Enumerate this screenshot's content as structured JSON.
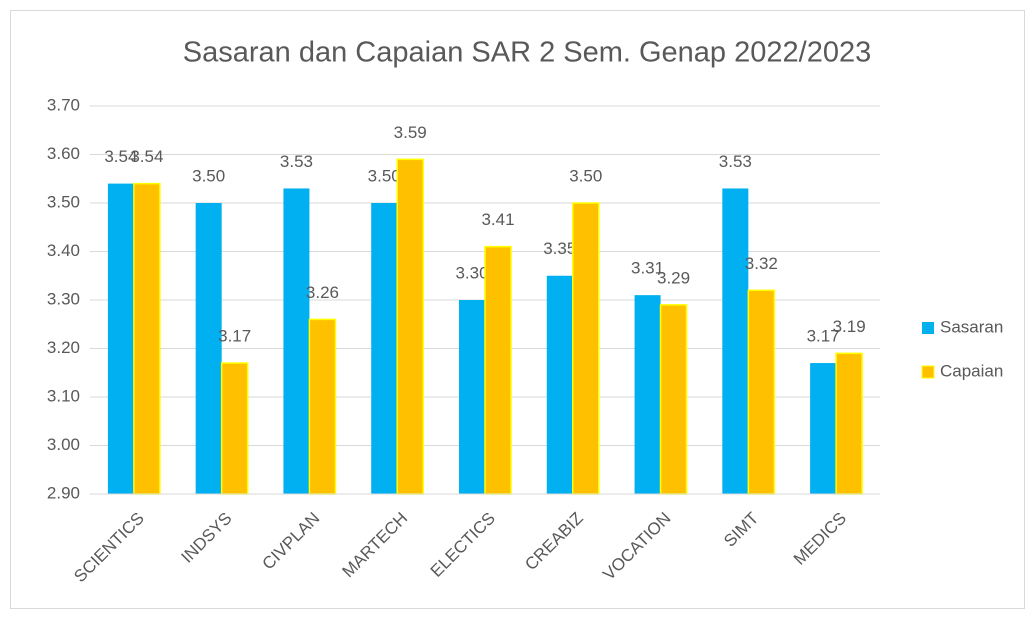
{
  "chart_data": {
    "type": "bar",
    "title": "Sasaran dan Capaian SAR 2 Sem. Genap 2022/2023",
    "categories": [
      "SCIENTICS",
      "INDSYS",
      "CIVPLAN",
      "MARTECH",
      "ELECTICS",
      "CREABIZ",
      "VOCATION",
      "SIMT",
      "MEDICS"
    ],
    "series": [
      {
        "name": "Sasaran",
        "color": "#00b0f0",
        "values": [
          3.54,
          3.5,
          3.53,
          3.5,
          3.3,
          3.35,
          3.31,
          3.53,
          3.17
        ],
        "value_labels": [
          "3.54",
          "3.50",
          "3.53",
          "3.50",
          "3.30",
          "3.35",
          "3.31",
          "3.53",
          "3.17"
        ]
      },
      {
        "name": "Capaian",
        "color": "#ffc000",
        "values": [
          3.54,
          3.17,
          3.26,
          3.59,
          3.41,
          3.5,
          3.29,
          3.32,
          3.19
        ],
        "value_labels": [
          "3.54",
          "3.17",
          "3.26",
          "3.59",
          "3.41",
          "3.50",
          "3.29",
          "3.32",
          "3.19"
        ]
      }
    ],
    "ylim": [
      2.9,
      3.7
    ],
    "yticks": [
      {
        "value": 2.9,
        "label": "2.90"
      },
      {
        "value": 3.0,
        "label": "3.00"
      },
      {
        "value": 3.1,
        "label": "3.10"
      },
      {
        "value": 3.2,
        "label": "3.20"
      },
      {
        "value": 3.3,
        "label": "3.30"
      },
      {
        "value": 3.4,
        "label": "3.40"
      },
      {
        "value": 3.5,
        "label": "3.50"
      },
      {
        "value": 3.6,
        "label": "3.60"
      },
      {
        "value": 3.7,
        "label": "3.70"
      }
    ],
    "grid": true,
    "legend": "right"
  }
}
